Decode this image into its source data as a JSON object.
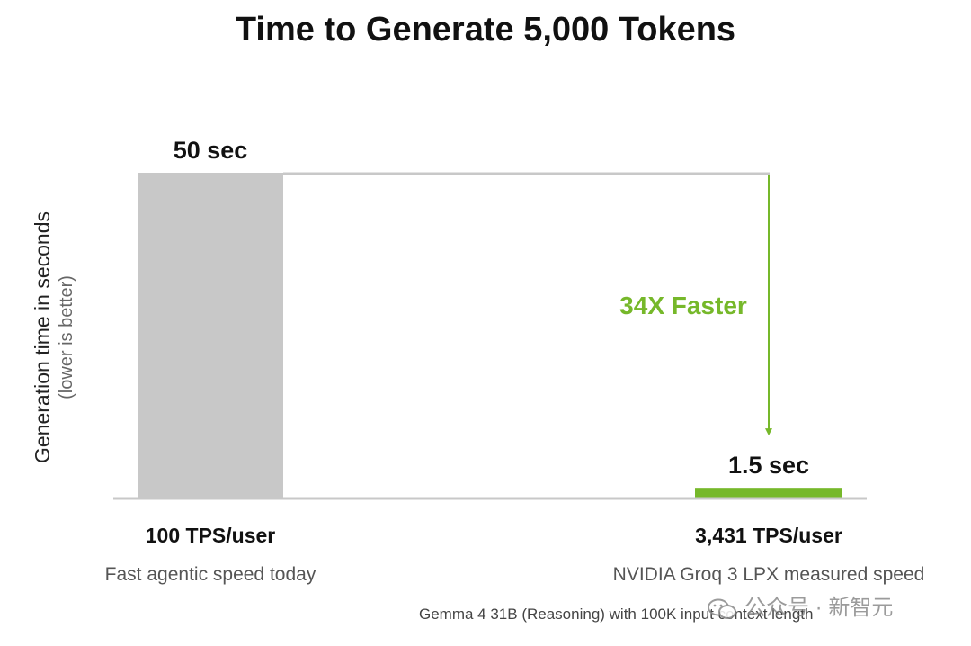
{
  "chart_data": {
    "type": "bar",
    "title": "Time to Generate 5,000 Tokens",
    "ylabel": "Generation time in seconds",
    "ylabel_note": "(lower is better)",
    "ylim": [
      0,
      50
    ],
    "grid": false,
    "categories": [
      "100 TPS/user",
      "3,431 TPS/user"
    ],
    "descriptions": [
      "Fast agentic speed today",
      "NVIDIA Groq 3 LPX measured speed"
    ],
    "values": [
      50,
      1.5
    ],
    "data_labels": [
      "50 sec",
      "1.5 sec"
    ],
    "colors": [
      "#c8c8c8",
      "#76b82a"
    ],
    "annotation": "34X Faster",
    "annotation_color": "#76b82a"
  },
  "footnote": "Gemma 4 31B (Reasoning) with 100K input context length",
  "watermark": {
    "icon": "wechat-icon",
    "text": "公众号 · 新智元"
  }
}
